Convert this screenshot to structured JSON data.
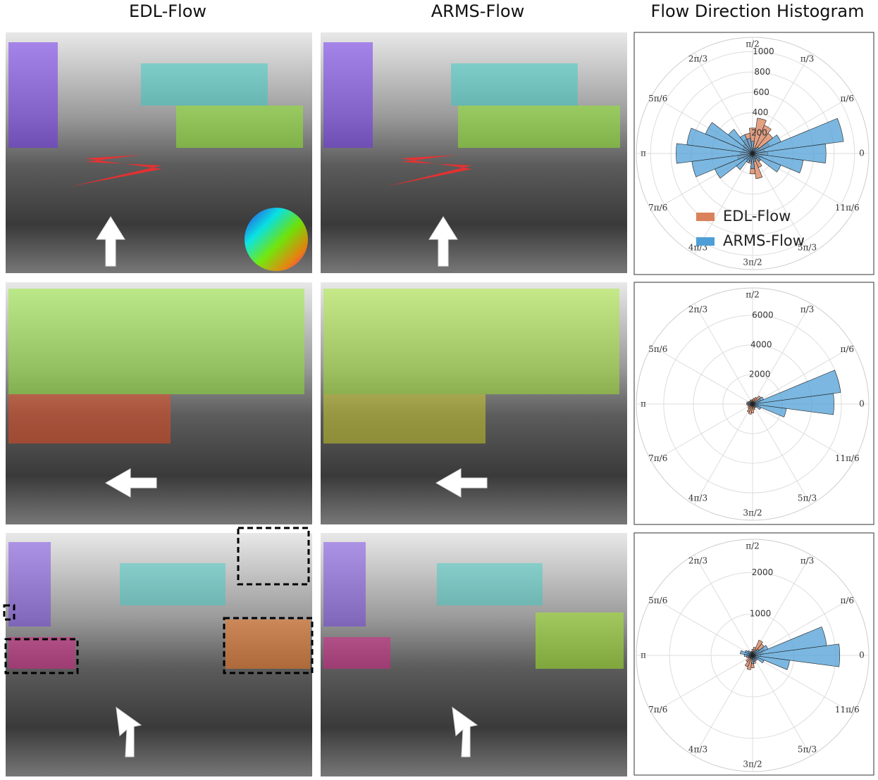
{
  "columns": [
    "EDL-Flow",
    "ARMS-Flow",
    "Flow Direction Histogram"
  ],
  "chart_data": [
    {
      "type": "polar-bar",
      "legend": "lower-left",
      "rlim": [
        0,
        1140
      ],
      "rticks": [
        200,
        400,
        600,
        800,
        1000
      ],
      "angle_ticks": [
        0,
        {
          "value": 0.5236,
          "label": "π/6"
        },
        {
          "value": 1.0472,
          "label": "π/3"
        },
        {
          "value": 1.5708,
          "label": "π/2"
        },
        {
          "value": 2.0944,
          "label": "2π/3"
        },
        {
          "value": 2.618,
          "label": "5π/6"
        },
        {
          "value": 3.1416,
          "label": "π"
        },
        {
          "value": 3.6652,
          "label": "7π/6"
        },
        {
          "value": 4.1888,
          "label": "4π/3"
        },
        {
          "value": 4.7124,
          "label": "3π/2"
        },
        {
          "value": 5.236,
          "label": "5π/3"
        },
        {
          "value": 5.7596,
          "label": "11π/6"
        }
      ],
      "series": [
        {
          "name": "EDL-Flow",
          "color": "#d9825b",
          "values": [
            150,
            120,
            180,
            250,
            300,
            350,
            250,
            200,
            150,
            120,
            100,
            100,
            120,
            150,
            100,
            80,
            80,
            100,
            200,
            250,
            150,
            100,
            80,
            100
          ]
        },
        {
          "name": "ARMS-Flow",
          "color": "#4f9fd6",
          "values": [
            720,
            900,
            300,
            80,
            60,
            50,
            120,
            150,
            200,
            300,
            500,
            650,
            750,
            600,
            400,
            200,
            100,
            80,
            150,
            80,
            60,
            100,
            300,
            500
          ]
        }
      ]
    },
    {
      "type": "polar-bar",
      "rlim": [
        0,
        7850
      ],
      "rticks": [
        2000,
        4000,
        6000
      ],
      "angle_ticks": [
        0,
        {
          "value": 0.5236,
          "label": "π/6"
        },
        {
          "value": 1.0472,
          "label": "π/3"
        },
        {
          "value": 1.5708,
          "label": "π/2"
        },
        {
          "value": 2.0944,
          "label": "2π/3"
        },
        {
          "value": 2.618,
          "label": "5π/6"
        },
        {
          "value": 3.1416,
          "label": "π"
        },
        {
          "value": 3.6652,
          "label": "7π/6"
        },
        {
          "value": 4.1888,
          "label": "4π/3"
        },
        {
          "value": 4.7124,
          "label": "3π/2"
        },
        {
          "value": 5.236,
          "label": "5π/3"
        },
        {
          "value": 5.7596,
          "label": "11π/6"
        }
      ],
      "series": [
        {
          "color": "#d9825b",
          "values": [
            400,
            500,
            600,
            700,
            500,
            400,
            300,
            300,
            300,
            250,
            300,
            350,
            400,
            350,
            300,
            400,
            600,
            700,
            600,
            400,
            300,
            300,
            350,
            400
          ]
        },
        {
          "color": "#4f9fd6",
          "values": [
            5500,
            6000,
            800,
            200,
            150,
            100,
            100,
            80,
            100,
            150,
            300,
            400,
            300,
            200,
            100,
            80,
            80,
            100,
            150,
            100,
            100,
            200,
            600,
            2300
          ]
        }
      ]
    },
    {
      "type": "polar-bar",
      "rlim": [
        0,
        2800
      ],
      "rticks": [
        1000,
        2000
      ],
      "angle_ticks": [
        0,
        {
          "value": 0.5236,
          "label": "π/6"
        },
        {
          "value": 1.0472,
          "label": "π/3"
        },
        {
          "value": 1.5708,
          "label": "π/2"
        },
        {
          "value": 2.0944,
          "label": "2π/3"
        },
        {
          "value": 2.618,
          "label": "5π/6"
        },
        {
          "value": 3.1416,
          "label": "π"
        },
        {
          "value": 3.6652,
          "label": "7π/6"
        },
        {
          "value": 4.1888,
          "label": "4π/3"
        },
        {
          "value": 4.7124,
          "label": "3π/2"
        },
        {
          "value": 5.236,
          "label": "5π/3"
        },
        {
          "value": 5.7596,
          "label": "11π/6"
        }
      ],
      "series": [
        {
          "color": "#d9825b",
          "values": [
            200,
            250,
            300,
            350,
            400,
            200,
            150,
            100,
            80,
            80,
            100,
            120,
            150,
            150,
            120,
            200,
            300,
            350,
            300,
            200,
            150,
            100,
            120,
            150
          ]
        },
        {
          "color": "#4f9fd6",
          "values": [
            2100,
            1800,
            400,
            200,
            150,
            100,
            80,
            80,
            100,
            150,
            200,
            300,
            200,
            100,
            80,
            80,
            80,
            100,
            200,
            150,
            100,
            150,
            300,
            900
          ]
        }
      ]
    }
  ]
}
